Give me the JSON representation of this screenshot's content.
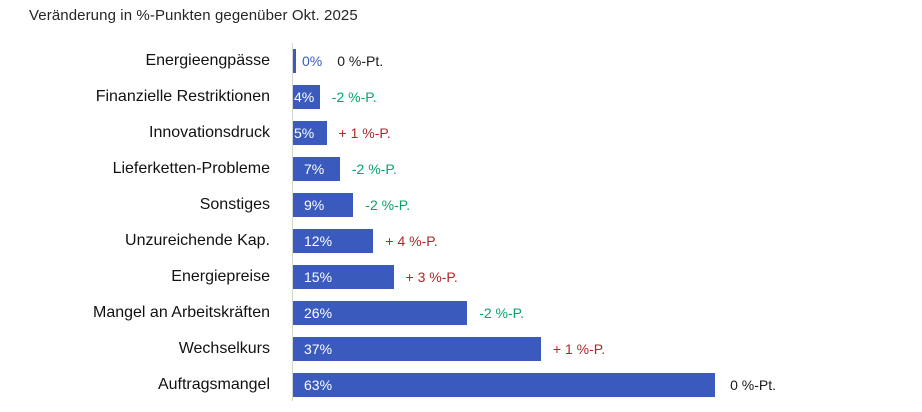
{
  "title": "Veränderung in %-Punkten gegenüber Okt. 2025",
  "colors": {
    "bar": "#3a5abe",
    "positive_change_red": "#b22525",
    "negative_change_green": "#0aa367",
    "neutral_text": "#1a1a1a",
    "axis": "#d4d4d4"
  },
  "chart_data": {
    "type": "bar",
    "orientation": "horizontal",
    "title": "Veränderung in %-Punkten gegenüber Okt. 2025",
    "categories": [
      "Energieengpässe",
      "Finanzielle Restriktionen",
      "Innovationsdruck",
      "Lieferketten-Probleme",
      "Sonstiges",
      "Unzureichende Kap.",
      "Energiepreise",
      "Mangel an Arbeitskräften",
      "Wechselkurs",
      "Auftragsmangel"
    ],
    "values": [
      0,
      4,
      5,
      7,
      9,
      12,
      15,
      26,
      37,
      63
    ],
    "value_labels": [
      "0%",
      "4%",
      "5%",
      "7%",
      "9%",
      "12%",
      "15%",
      "26%",
      "37%",
      "63%"
    ],
    "change_labels": [
      "0 %-Pt.",
      "-2 %-P.",
      "+ 1 %-P.",
      "-2 %-P.",
      "-2 %-P.",
      "+ 4 %-P.",
      "+ 3 %-P.",
      "-2 %-P.",
      "+ 1 %-P.",
      "0 %-Pt."
    ],
    "change_types": [
      "neutral",
      "decrease",
      "increase",
      "decrease",
      "decrease",
      "increase",
      "increase",
      "decrease",
      "increase",
      "neutral"
    ],
    "xlim": [
      0,
      65
    ],
    "grid": false,
    "legend": false,
    "axis_ticks_visible": false
  }
}
